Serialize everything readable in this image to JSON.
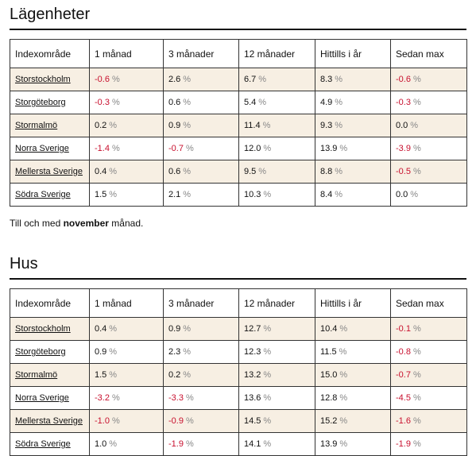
{
  "sections": [
    {
      "title": "Lägenheter",
      "table": {
        "header": [
          "Indexområde",
          "1 månad",
          "3 månader",
          "12 månader",
          "Hittills i år",
          "Sedan max"
        ],
        "unit": "%",
        "rows": [
          [
            "Storstockholm",
            "-0.6",
            "2.6",
            "6.7",
            "8.3",
            "-0.6"
          ],
          [
            "Storgöteborg",
            "-0.3",
            "0.6",
            "5.4",
            "4.9",
            "-0.3"
          ],
          [
            "Stormalmö",
            "0.2",
            "0.9",
            "11.4",
            "9.3",
            "0.0"
          ],
          [
            "Norra Sverige",
            "-1.4",
            "-0.7",
            "12.0",
            "13.9",
            "-3.9"
          ],
          [
            "Mellersta Sverige",
            "0.4",
            "0.6",
            "9.5",
            "8.8",
            "-0.5"
          ],
          [
            "Södra Sverige",
            "1.5",
            "2.1",
            "10.3",
            "8.4",
            "0.0"
          ]
        ]
      },
      "note": {
        "before": "Till och med",
        "bold": "november",
        "after": "månad."
      }
    },
    {
      "title": "Hus",
      "table": {
        "header": [
          "Indexområde",
          "1 månad",
          "3 månader",
          "12 månader",
          "Hittills i år",
          "Sedan max"
        ],
        "unit": "%",
        "rows": [
          [
            "Storstockholm",
            "0.4",
            "0.9",
            "12.7",
            "10.4",
            "-0.1"
          ],
          [
            "Storgöteborg",
            "0.9",
            "2.3",
            "12.3",
            "11.5",
            "-0.8"
          ],
          [
            "Stormalmö",
            "1.5",
            "0.2",
            "13.2",
            "15.0",
            "-0.7"
          ],
          [
            "Norra Sverige",
            "-3.2",
            "-3.3",
            "13.6",
            "12.8",
            "-4.5"
          ],
          [
            "Mellersta Sverige",
            "-1.0",
            "-0.9",
            "14.5",
            "15.2",
            "-1.6"
          ],
          [
            "Södra Sverige",
            "1.0",
            "-1.9",
            "14.1",
            "13.9",
            "-1.9"
          ]
        ]
      }
    }
  ]
}
